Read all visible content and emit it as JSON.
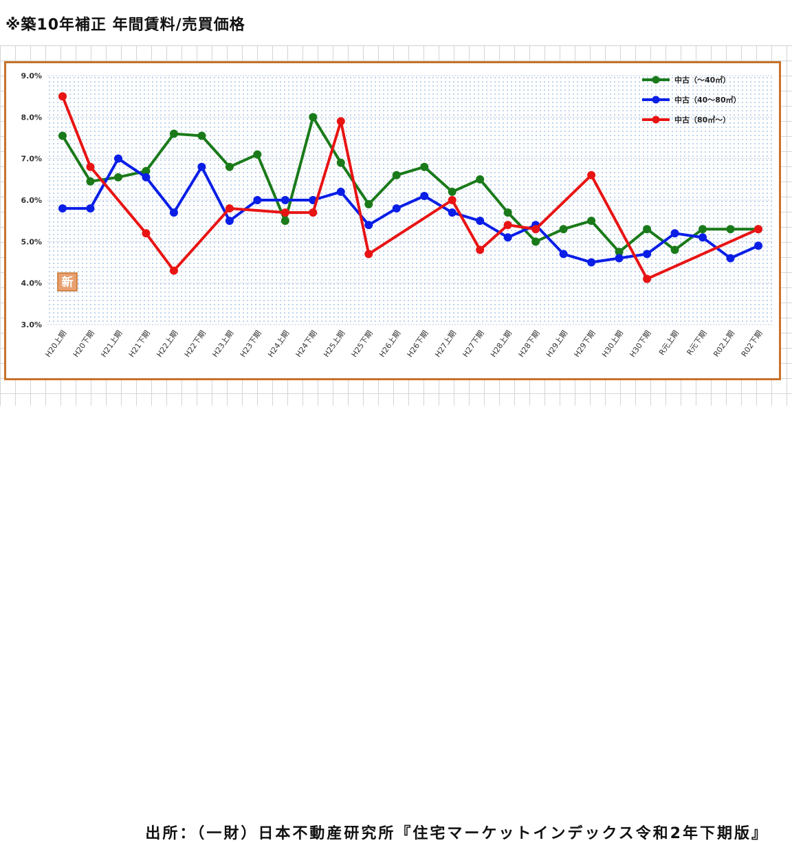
{
  "header": {
    "title": "※築10年補正 年間賃料/売買価格"
  },
  "footer": {
    "source": "出所：（一財）日本不動産研究所『住宅マーケットインデックス令和2年下期版』"
  },
  "badge": {
    "text": "新"
  },
  "chart_data": {
    "type": "line",
    "categories": [
      "H20上期",
      "H20下期",
      "H21上期",
      "H21下期",
      "H22上期",
      "H22下期",
      "H23上期",
      "H23下期",
      "H24上期",
      "H24下期",
      "H25上期",
      "H25下期",
      "H26上期",
      "H26下期",
      "H27上期",
      "H27下期",
      "H28上期",
      "H28下期",
      "H29上期",
      "H29下期",
      "H30上期",
      "H30下期",
      "R元上期",
      "R元下期",
      "R02上期",
      "R02下期"
    ],
    "ylim": [
      3.0,
      9.0
    ],
    "yticks": [
      3.0,
      4.0,
      5.0,
      6.0,
      7.0,
      8.0,
      9.0
    ],
    "ytick_labels": [
      "3.0%",
      "4.0%",
      "5.0%",
      "6.0%",
      "7.0%",
      "8.0%",
      "9.0%"
    ],
    "grid": true,
    "legend_position": "top-right",
    "series": [
      {
        "name": "中古（～40㎡）",
        "color": "#1a7a1a",
        "values": [
          7.55,
          6.45,
          6.55,
          6.7,
          7.6,
          7.55,
          6.8,
          7.1,
          5.5,
          8.0,
          6.9,
          5.9,
          6.6,
          6.8,
          6.2,
          6.5,
          5.7,
          5.0,
          5.3,
          5.5,
          4.75,
          5.3,
          4.8,
          5.3,
          5.3,
          5.3
        ]
      },
      {
        "name": "中古（40～80㎡）",
        "color": "#0a1ee6",
        "values": [
          5.8,
          5.8,
          7.0,
          6.55,
          5.7,
          6.8,
          5.5,
          6.0,
          6.0,
          6.0,
          6.2,
          5.4,
          5.8,
          6.1,
          5.7,
          5.5,
          5.1,
          5.4,
          4.7,
          4.5,
          4.6,
          4.7,
          5.2,
          5.1,
          4.6,
          4.9
        ]
      },
      {
        "name": "中古（80㎡～）",
        "color": "#e81414",
        "points": [
          [
            0,
            8.5
          ],
          [
            1,
            6.8
          ],
          [
            3,
            5.2
          ],
          [
            4,
            4.3
          ],
          [
            6,
            5.8
          ],
          [
            8,
            5.7
          ],
          [
            9,
            5.7
          ],
          [
            10,
            7.9
          ],
          [
            11,
            4.7
          ],
          [
            14,
            6.0
          ],
          [
            15,
            4.8
          ],
          [
            16,
            5.4
          ],
          [
            17,
            5.3
          ],
          [
            19,
            6.6
          ],
          [
            21,
            4.1
          ],
          [
            25,
            5.3
          ]
        ]
      }
    ]
  }
}
